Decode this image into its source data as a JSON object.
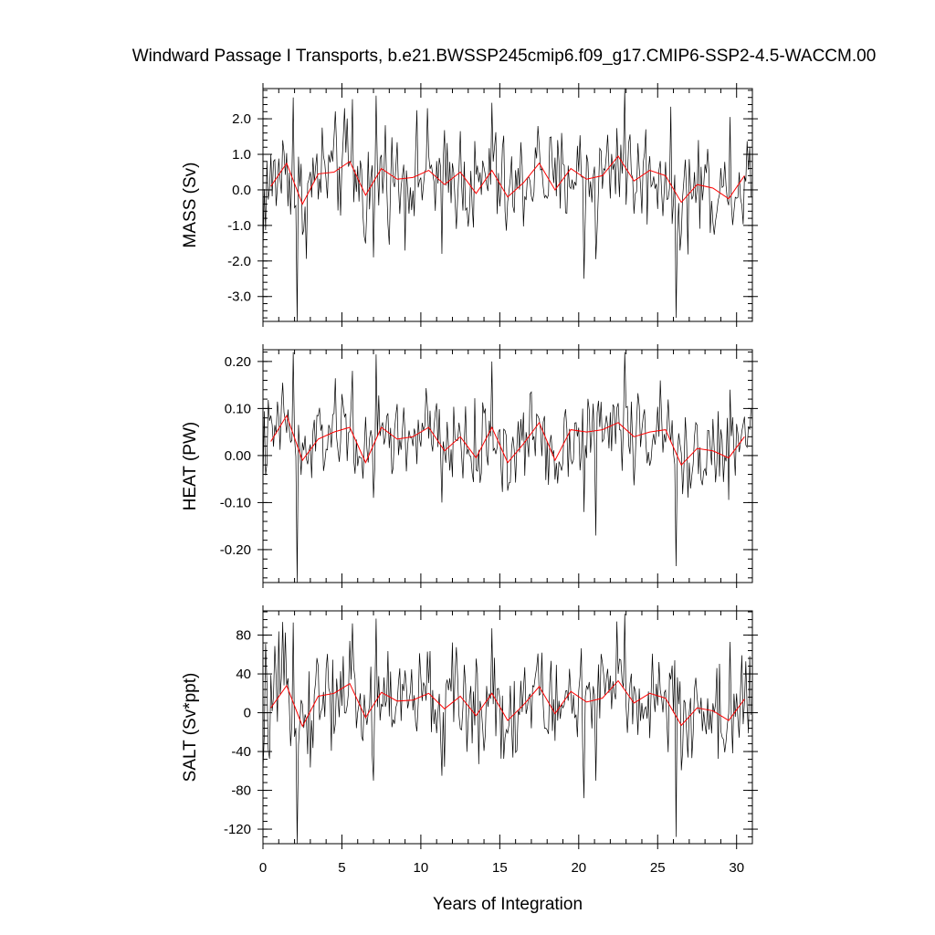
{
  "chart_data": {
    "type": "line",
    "title": "Windward Passage I Transports, b.e21.BWSSP245cmip6.f09_g17.CMIP6-SSP2-4.5-WACCM.00",
    "xlabel": "Years of Integration",
    "xlim": [
      0,
      31
    ],
    "x_ticks": [
      0,
      5,
      10,
      15,
      20,
      25,
      30
    ],
    "x_tick_labels": [
      "0",
      "5",
      "10",
      "15",
      "20",
      "25",
      "30"
    ],
    "colors": {
      "monthly": "#000000",
      "annual": "#ff0000"
    },
    "panels": [
      {
        "id": "mass",
        "ylabel": "MASS (Sv)",
        "ylim": [
          -3.7,
          2.85
        ],
        "y_ticks": [
          2.0,
          1.0,
          0.0,
          -1.0,
          -2.0,
          -3.0
        ],
        "y_tick_labels": [
          "2.0",
          "1.0",
          "0.0",
          "-1.0",
          "-2.0",
          "-3.0"
        ],
        "y_minor_step": 0.2,
        "annual_x": [
          0.5,
          1.5,
          2.5,
          3.5,
          4.5,
          5.5,
          6.5,
          7.5,
          8.5,
          9.5,
          10.5,
          11.5,
          12.5,
          13.5,
          14.5,
          15.5,
          16.5,
          17.5,
          18.5,
          19.5,
          20.5,
          21.5,
          22.5,
          23.5,
          24.5,
          25.5,
          26.5,
          27.5,
          28.5,
          29.5,
          30.5
        ],
        "annual_y": [
          0.1,
          0.75,
          -0.4,
          0.45,
          0.5,
          0.8,
          -0.15,
          0.6,
          0.3,
          0.35,
          0.55,
          0.15,
          0.5,
          -0.1,
          0.55,
          -0.2,
          0.2,
          0.75,
          0.0,
          0.6,
          0.3,
          0.4,
          0.95,
          0.25,
          0.55,
          0.4,
          -0.35,
          0.15,
          0.05,
          -0.25,
          0.4
        ],
        "monthly_peaks": [
          {
            "x": 0.0,
            "y": -1.8
          },
          {
            "x": 1.9,
            "y": 2.6
          },
          {
            "x": 2.2,
            "y": -3.75
          },
          {
            "x": 5.7,
            "y": 2.55
          },
          {
            "x": 7.2,
            "y": 2.65
          },
          {
            "x": 7.0,
            "y": -1.9
          },
          {
            "x": 11.3,
            "y": -1.8
          },
          {
            "x": 14.5,
            "y": 2.45
          },
          {
            "x": 20.3,
            "y": -2.5
          },
          {
            "x": 21.1,
            "y": -1.95
          },
          {
            "x": 22.9,
            "y": 2.85
          },
          {
            "x": 26.2,
            "y": -3.6
          },
          {
            "x": 29.6,
            "y": 2.05
          }
        ],
        "monthly_spread": 0.75
      },
      {
        "id": "heat",
        "ylabel": "HEAT (PW)",
        "ylim": [
          -0.27,
          0.225
        ],
        "y_ticks": [
          0.2,
          0.1,
          0.0,
          -0.1,
          -0.2
        ],
        "y_tick_labels": [
          "0.20",
          "0.10",
          "0.00",
          "-0.10",
          "-0.20"
        ],
        "y_minor_step": 0.02,
        "annual_x": [
          0.5,
          1.5,
          2.5,
          3.5,
          4.5,
          5.5,
          6.5,
          7.5,
          8.5,
          9.5,
          10.5,
          11.5,
          12.5,
          13.5,
          14.5,
          15.5,
          16.5,
          17.5,
          18.5,
          19.5,
          20.5,
          21.5,
          22.5,
          23.5,
          24.5,
          25.5,
          26.5,
          27.5,
          28.5,
          29.5,
          30.5
        ],
        "annual_y": [
          0.03,
          0.085,
          -0.01,
          0.035,
          0.05,
          0.06,
          -0.015,
          0.06,
          0.035,
          0.04,
          0.06,
          0.01,
          0.04,
          -0.005,
          0.06,
          -0.015,
          0.025,
          0.07,
          -0.01,
          0.055,
          0.05,
          0.055,
          0.07,
          0.04,
          0.05,
          0.055,
          -0.02,
          0.015,
          0.01,
          -0.005,
          0.04
        ],
        "monthly_peaks": [
          {
            "x": 0.0,
            "y": -0.06
          },
          {
            "x": 1.9,
            "y": 0.22
          },
          {
            "x": 2.2,
            "y": -0.27
          },
          {
            "x": 5.7,
            "y": 0.18
          },
          {
            "x": 7.2,
            "y": 0.215
          },
          {
            "x": 7.0,
            "y": -0.09
          },
          {
            "x": 11.3,
            "y": -0.1
          },
          {
            "x": 14.5,
            "y": 0.2
          },
          {
            "x": 20.3,
            "y": -0.12
          },
          {
            "x": 21.1,
            "y": -0.17
          },
          {
            "x": 22.9,
            "y": 0.22
          },
          {
            "x": 26.2,
            "y": -0.235
          },
          {
            "x": 29.6,
            "y": 0.14
          }
        ],
        "monthly_spread": 0.045
      },
      {
        "id": "salt",
        "ylabel": "SALT (Sv*ppt)",
        "ylim": [
          -135,
          105
        ],
        "y_ticks": [
          80,
          40,
          0,
          -40,
          -80,
          -120
        ],
        "y_tick_labels": [
          "80",
          "40",
          "0",
          "-40",
          "-80",
          "-120"
        ],
        "y_minor_step": 8,
        "annual_x": [
          0.5,
          1.5,
          2.5,
          3.5,
          4.5,
          5.5,
          6.5,
          7.5,
          8.5,
          9.5,
          10.5,
          11.5,
          12.5,
          13.5,
          14.5,
          15.5,
          16.5,
          17.5,
          18.5,
          19.5,
          20.5,
          21.5,
          22.5,
          23.5,
          24.5,
          25.5,
          26.5,
          27.5,
          28.5,
          29.5,
          30.5
        ],
        "annual_y": [
          5,
          28,
          -14,
          17,
          20,
          30,
          -5,
          21,
          12,
          13,
          20,
          4,
          17,
          -3,
          20,
          -8,
          8,
          27,
          -1,
          22,
          11,
          15,
          33,
          10,
          20,
          15,
          -13,
          5,
          2,
          -8,
          14
        ],
        "monthly_peaks": [
          {
            "x": 0.0,
            "y": -60
          },
          {
            "x": 1.9,
            "y": 93
          },
          {
            "x": 2.2,
            "y": -135
          },
          {
            "x": 5.7,
            "y": 92
          },
          {
            "x": 7.2,
            "y": 97
          },
          {
            "x": 7.0,
            "y": -70
          },
          {
            "x": 11.3,
            "y": -65
          },
          {
            "x": 14.5,
            "y": 87
          },
          {
            "x": 20.3,
            "y": -88
          },
          {
            "x": 21.1,
            "y": -70
          },
          {
            "x": 22.9,
            "y": 102
          },
          {
            "x": 26.2,
            "y": -128
          },
          {
            "x": 29.6,
            "y": 73
          }
        ],
        "monthly_spread": 27
      }
    ]
  }
}
